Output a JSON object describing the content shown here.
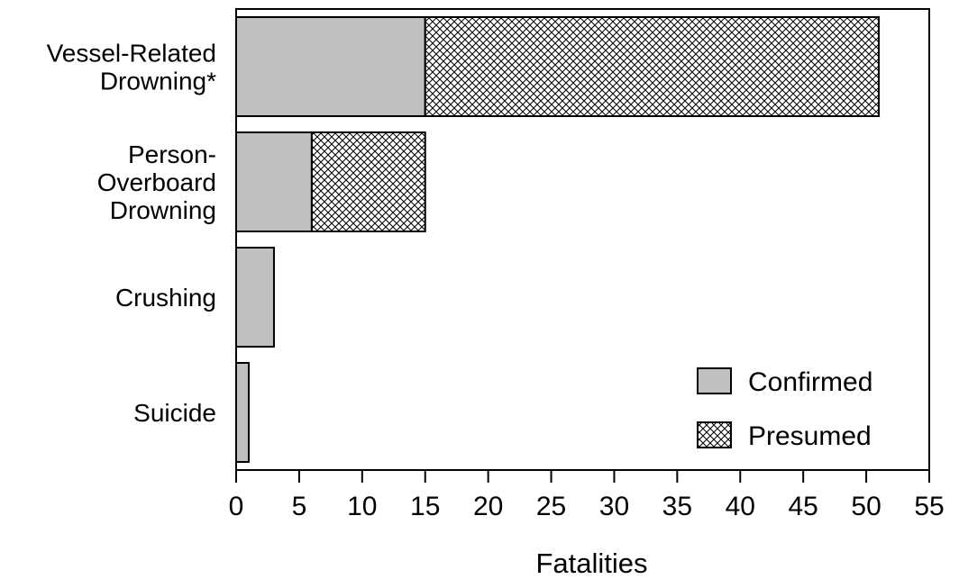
{
  "chart_data": {
    "type": "bar",
    "orientation": "horizontal",
    "stacked": true,
    "categories": [
      [
        "Vessel-Related",
        "Drowning*"
      ],
      [
        "Person-",
        "Overboard",
        "Drowning"
      ],
      [
        "Crushing"
      ],
      [
        "Suicide"
      ]
    ],
    "series": [
      {
        "name": "Confirmed",
        "values": [
          15,
          6,
          3,
          1
        ],
        "fill": "#c0c0c0",
        "pattern": "solid"
      },
      {
        "name": "Presumed",
        "values": [
          36,
          9,
          0,
          0
        ],
        "fill": "#ffffff",
        "pattern": "crosshatch"
      }
    ],
    "xlabel": "Fatalities",
    "ylabel": "",
    "xlim": [
      0,
      55
    ],
    "xticks": [
      0,
      5,
      10,
      15,
      20,
      25,
      30,
      35,
      40,
      45,
      50,
      55
    ],
    "grid": false,
    "legend": {
      "position": "bottom-right",
      "entries": [
        "Confirmed",
        "Presumed"
      ]
    }
  }
}
